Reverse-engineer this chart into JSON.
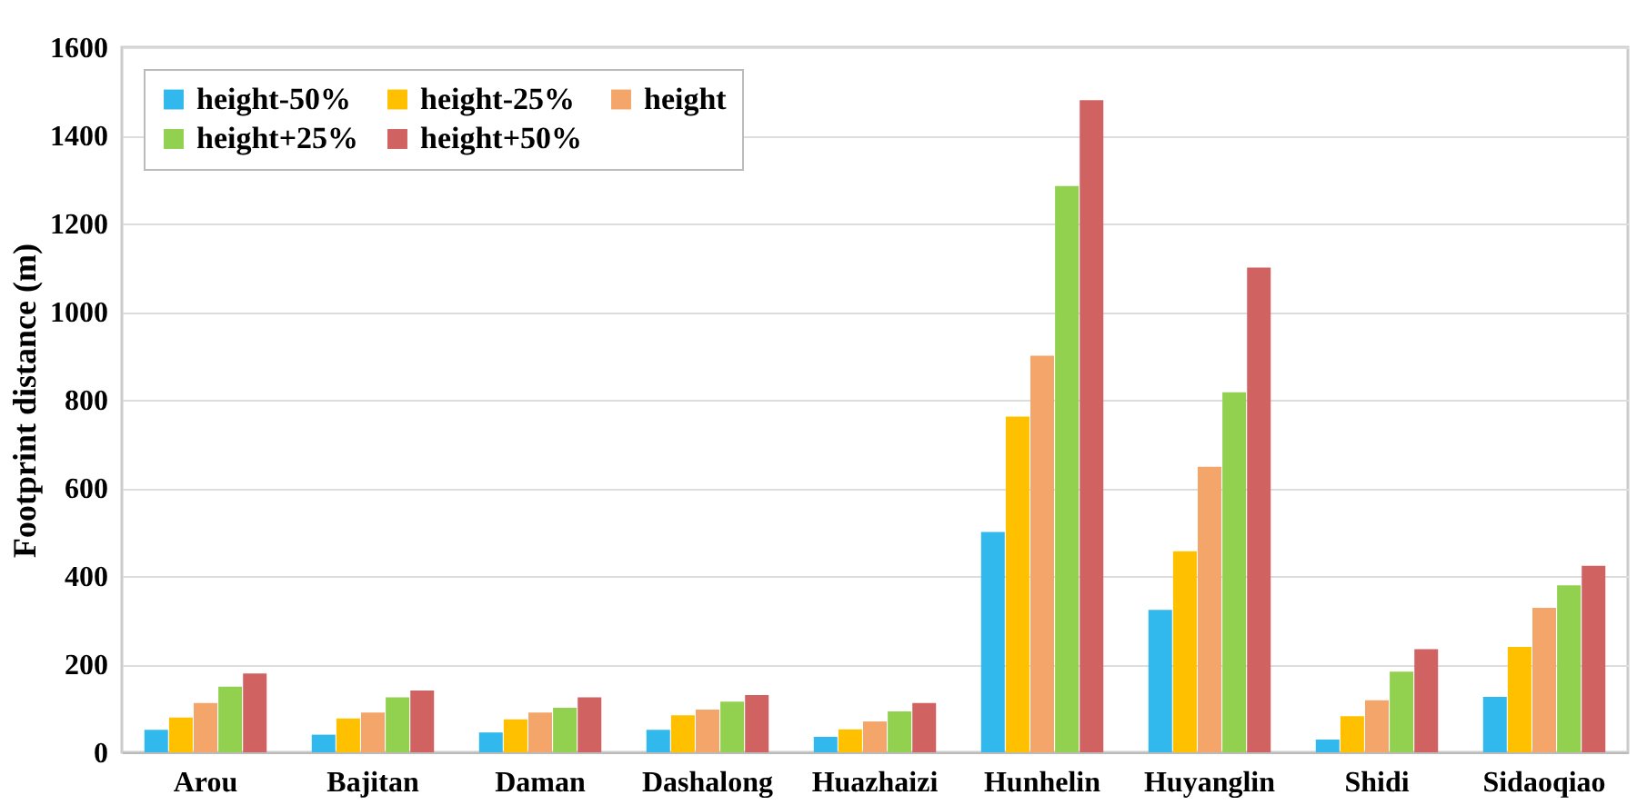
{
  "chart_data": {
    "type": "bar",
    "ylabel": "Footprint distance (m)",
    "categories": [
      "Arou",
      "Bajitan",
      "Daman",
      "Dashalong",
      "Huazhaizi",
      "Hunhelin",
      "Huyanglin",
      "Shidi",
      "Sidaoqiao"
    ],
    "series": [
      {
        "name": "height-50%",
        "color": "#31b8ec",
        "values": [
          51,
          40,
          45,
          51,
          35,
          500,
          323,
          29,
          126
        ]
      },
      {
        "name": "height-25%",
        "color": "#ffc000",
        "values": [
          79,
          77,
          75,
          84,
          52,
          762,
          456,
          82,
          239
        ]
      },
      {
        "name": "height",
        "color": "#f4a56a",
        "values": [
          112,
          90,
          90,
          97,
          70,
          900,
          648,
          118,
          328
        ]
      },
      {
        "name": "height+25%",
        "color": "#92d050",
        "values": [
          149,
          125,
          101,
          115,
          93,
          1285,
          817,
          183,
          379
        ]
      },
      {
        "name": "height+50%",
        "color": "#d06262",
        "values": [
          179,
          140,
          125,
          130,
          112,
          1480,
          1100,
          234,
          423
        ]
      }
    ],
    "ylim": [
      0,
      1600
    ],
    "yticks": [
      0,
      200,
      400,
      600,
      800,
      1000,
      1200,
      1400,
      1600
    ],
    "grid": "y",
    "legend": "top left"
  }
}
